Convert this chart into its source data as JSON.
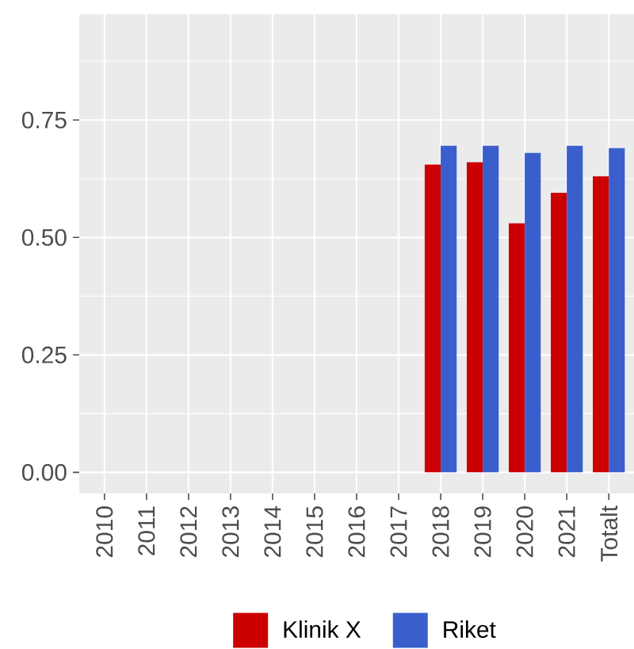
{
  "chart_data": {
    "type": "bar",
    "categories": [
      "2010",
      "2011",
      "2012",
      "2013",
      "2014",
      "2015",
      "2016",
      "2017",
      "2018",
      "2019",
      "2020",
      "2021",
      "Totalt"
    ],
    "series": [
      {
        "name": "Klinik X",
        "color": "#cc0000",
        "values": [
          null,
          null,
          null,
          null,
          null,
          null,
          null,
          null,
          0.655,
          0.66,
          0.53,
          0.595,
          0.63
        ]
      },
      {
        "name": "Riket",
        "color": "#3a5fcd",
        "values": [
          null,
          null,
          null,
          null,
          null,
          null,
          null,
          null,
          0.695,
          0.695,
          0.68,
          0.695,
          0.69
        ]
      }
    ],
    "ylim": [
      -0.045,
      0.975
    ],
    "yticks": [
      {
        "value": 0,
        "label": "0.00"
      },
      {
        "value": 0.25,
        "label": "0.25"
      },
      {
        "value": 0.5,
        "label": "0.50"
      },
      {
        "value": 0.75,
        "label": "0.75"
      }
    ],
    "grid": true,
    "legend": "bottom"
  }
}
